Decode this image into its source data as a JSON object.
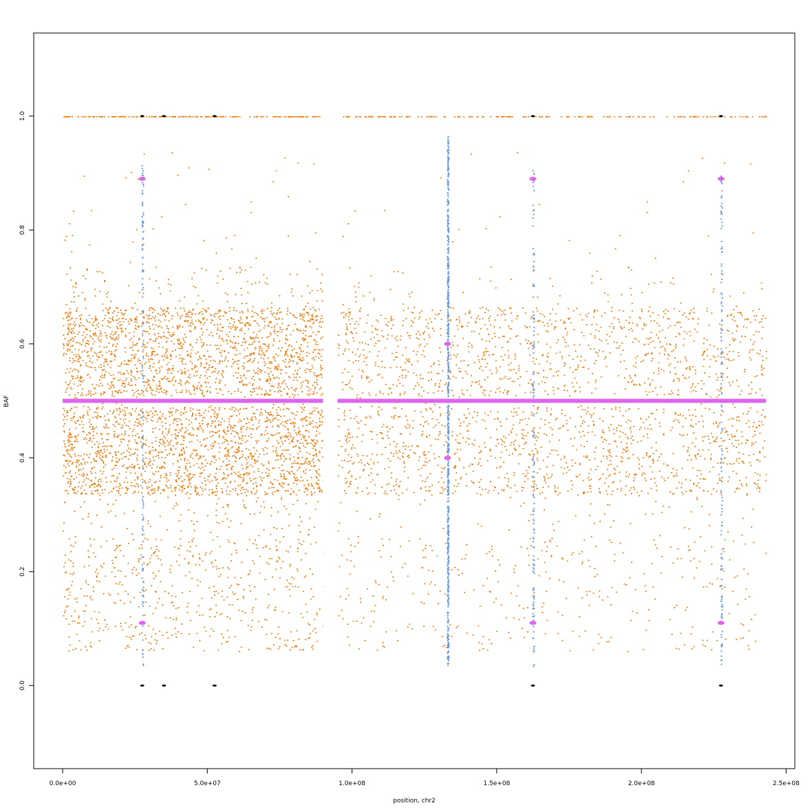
{
  "chart_data": {
    "type": "scatter",
    "title": "",
    "xlabel": "position, chr2",
    "ylabel": "BAF",
    "xlim": [
      -10000000,
      253000000
    ],
    "ylim": [
      -0.146,
      1.146
    ],
    "x_ticks": [
      {
        "value": 0,
        "label": "0.0e+00"
      },
      {
        "value": 50000000,
        "label": "5.0e+07"
      },
      {
        "value": 100000000,
        "label": "1.0e+08"
      },
      {
        "value": 150000000,
        "label": "1.5e+08"
      },
      {
        "value": 200000000,
        "label": "2.0e+08"
      },
      {
        "value": 250000000,
        "label": "2.5e+08"
      }
    ],
    "y_ticks": [
      {
        "value": 0.0,
        "label": "0.0"
      },
      {
        "value": 0.2,
        "label": "0.2"
      },
      {
        "value": 0.4,
        "label": "0.4"
      },
      {
        "value": 0.6,
        "label": "0.6"
      },
      {
        "value": 0.8,
        "label": "0.8"
      },
      {
        "value": 1.0,
        "label": "1.0"
      }
    ],
    "grid": false,
    "legend": false,
    "colors": {
      "het_snp": "#ee7600",
      "segment_mean": "#dd66ee",
      "blue_snp": "#6c9bd8",
      "homozygous": "#000000"
    },
    "segments": [
      {
        "x_start": 0,
        "x_end": 90000000,
        "baf": 0.5
      },
      {
        "x_start": 95000000,
        "x_end": 243000000,
        "baf": 0.5
      }
    ],
    "data_gap": {
      "x_start": 90000000,
      "x_end": 95000000
    },
    "dense_band_baf": [
      0.35,
      0.65
    ],
    "outer_band_baf": [
      0.06,
      0.94
    ],
    "blue_columns_x": [
      27500000,
      133000000,
      162500000,
      227500000
    ],
    "magenta_points": [
      {
        "x": 27500000,
        "baf": 0.89
      },
      {
        "x": 27500000,
        "baf": 0.11
      },
      {
        "x": 133000000,
        "baf": 0.6
      },
      {
        "x": 133000000,
        "baf": 0.4
      },
      {
        "x": 162500000,
        "baf": 0.89
      },
      {
        "x": 162500000,
        "baf": 0.11
      },
      {
        "x": 227500000,
        "baf": 0.89
      },
      {
        "x": 227500000,
        "baf": 0.11
      }
    ],
    "homozygous_points_x": [
      27500000,
      35000000,
      52500000,
      162500000,
      227500000
    ]
  }
}
